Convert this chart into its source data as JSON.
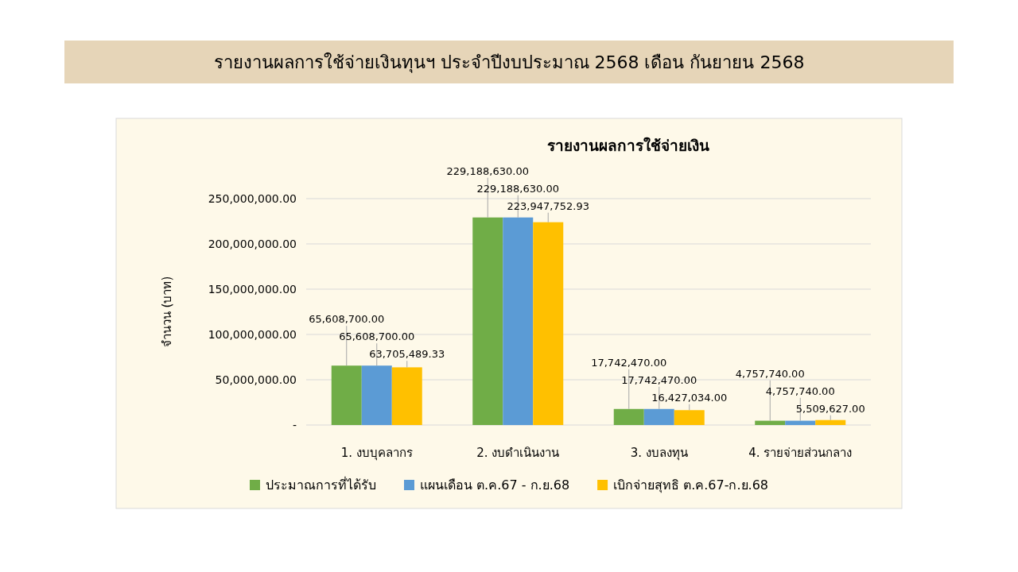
{
  "chart_data": {
    "type": "bar",
    "title": "รายงานผลการใช้จ่ายเงินทุนฯ  ประจำปีงบประมาณ  2568  เดือน  กันยายน  2568",
    "subtitle": "รายงานผลการใช้จ่ายเงิน",
    "ylabel": "จำนวน (บาท)",
    "categories": [
      "1. งบบุคลากร",
      "2. งบดำเนินงาน",
      "3. งบลงทุน",
      "4. รายจ่ายส่วนกลาง"
    ],
    "series": [
      {
        "name": "ประมาณการที่ได้รับ",
        "color": "#70ad47",
        "values": [
          65608700,
          229188630,
          17742470,
          4757740
        ],
        "value_labels": [
          "65,608,700.00",
          "229,188,630.00",
          "17,742,470.00",
          "4,757,740.00"
        ]
      },
      {
        "name": "แผนเดือน ต.ค.67 - ก.ย.68",
        "color": "#5b9bd5",
        "values": [
          65608700,
          229188630,
          17742470,
          4757740
        ],
        "value_labels": [
          "65,608,700.00",
          "229,188,630.00",
          "17,742,470.00",
          "4,757,740.00"
        ]
      },
      {
        "name": "เบิกจ่ายสุทธิ ต.ค.67-ก.ย.68",
        "color": "#ffc000",
        "values": [
          63705489.33,
          223947752.93,
          16427034,
          5509627
        ],
        "value_labels": [
          "63,705,489.33",
          "223,947,752.93",
          "16,427,034.00",
          "5,509,627.00"
        ]
      }
    ],
    "ylim": [
      0,
      250000000
    ],
    "yticks": [
      {
        "value": 0,
        "label": "-"
      },
      {
        "value": 50000000,
        "label": "50,000,000.00"
      },
      {
        "value": 100000000,
        "label": "100,000,000.00"
      },
      {
        "value": 150000000,
        "label": "150,000,000.00"
      },
      {
        "value": 200000000,
        "label": "200,000,000.00"
      },
      {
        "value": 250000000,
        "label": "250,000,000.00"
      }
    ],
    "grid": "y",
    "legend": "bottom"
  }
}
